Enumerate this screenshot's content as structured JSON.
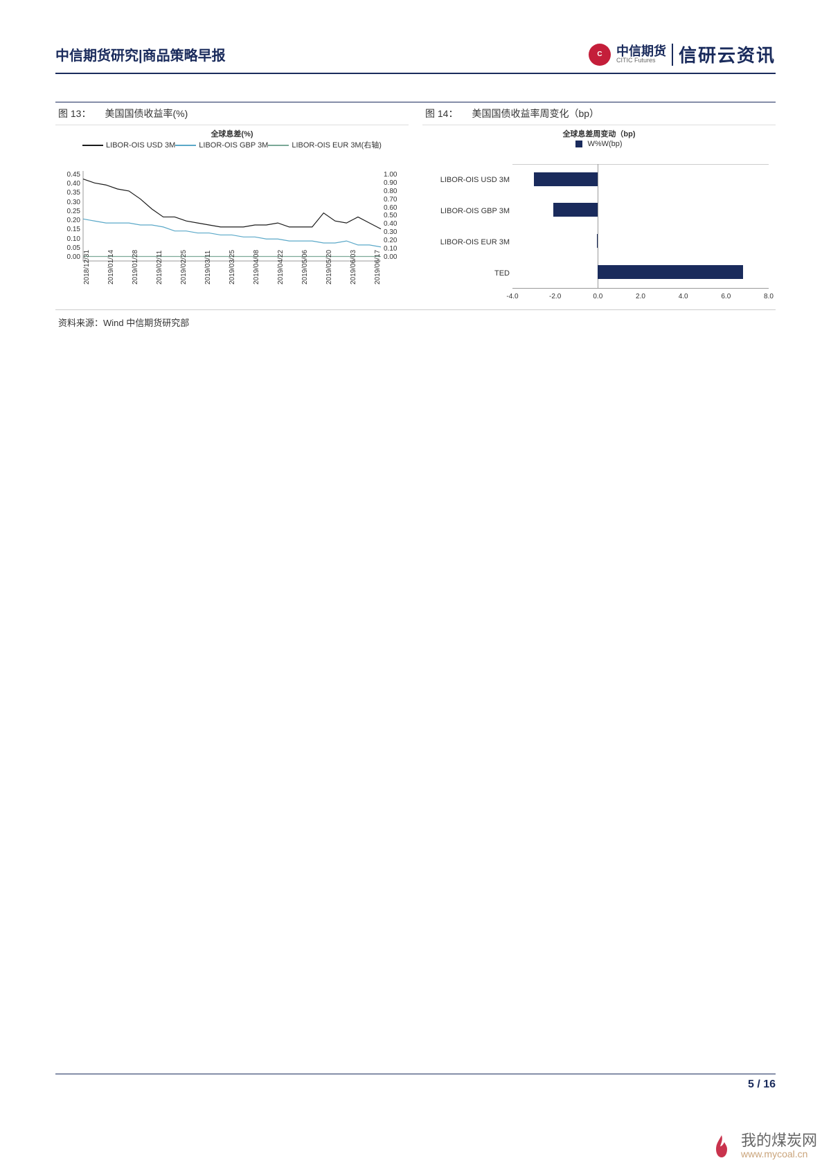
{
  "header": {
    "title": "中信期货研究|商品策略早报",
    "company_cn": "中信期货",
    "company_en": "CITIC Futures",
    "brand": "信研云资讯"
  },
  "chart13": {
    "label": "图 13：",
    "title": "美国国债收益率(%)",
    "type": "line",
    "legend_title": "全球息差(%)",
    "legend_items": [
      {
        "label": "LIBOR-OIS USD 3M",
        "color": "#1a1a1a"
      },
      {
        "label": "LIBOR-OIS GBP 3M",
        "color": "#5aa8c8"
      },
      {
        "label": "LIBOR-OIS EUR 3M(右轴)",
        "color": "#7aa897"
      }
    ],
    "y_left": {
      "min": 0.0,
      "max": 0.45,
      "ticks": [
        "0.45",
        "0.40",
        "0.35",
        "0.30",
        "0.25",
        "0.20",
        "0.15",
        "0.10",
        "0.05",
        "0.00"
      ]
    },
    "y_right": {
      "min": 0.0,
      "max": 1.0,
      "ticks": [
        "1.00",
        "0.90",
        "0.80",
        "0.70",
        "0.60",
        "0.50",
        "0.40",
        "0.30",
        "0.20",
        "0.10",
        "0.00"
      ]
    },
    "x_ticks": [
      "2018/12/31",
      "2019/01/14",
      "2019/01/28",
      "2019/02/11",
      "2019/02/25",
      "2019/03/11",
      "2019/03/25",
      "2019/04/08",
      "2019/04/22",
      "2019/05/06",
      "2019/05/20",
      "2019/06/03",
      "2019/06/17"
    ],
    "series": {
      "usd": [
        0.41,
        0.39,
        0.38,
        0.36,
        0.35,
        0.31,
        0.26,
        0.22,
        0.22,
        0.2,
        0.19,
        0.18,
        0.17,
        0.17,
        0.17,
        0.18,
        0.18,
        0.19,
        0.17,
        0.17,
        0.17,
        0.24,
        0.2,
        0.19,
        0.22,
        0.19,
        0.16
      ],
      "gbp": [
        0.21,
        0.2,
        0.19,
        0.19,
        0.19,
        0.18,
        0.18,
        0.17,
        0.15,
        0.15,
        0.14,
        0.14,
        0.13,
        0.13,
        0.12,
        0.12,
        0.11,
        0.11,
        0.1,
        0.1,
        0.1,
        0.09,
        0.09,
        0.1,
        0.08,
        0.08,
        0.07
      ],
      "eur_right": [
        0.05,
        0.05,
        0.05,
        0.05,
        0.05,
        0.05,
        0.05,
        0.05,
        0.05,
        0.05,
        0.05,
        0.05,
        0.05,
        0.05,
        0.05,
        0.05,
        0.05,
        0.05,
        0.05,
        0.05,
        0.05,
        0.05,
        0.05,
        0.05,
        0.05,
        0.05,
        0.05
      ]
    },
    "line_width": 1.2,
    "background_color": "#ffffff"
  },
  "chart14": {
    "label": "图 14：",
    "title": "美国国债收益率周变化（bp）",
    "type": "bar-horizontal",
    "legend_title": "全球息差周变动（bp)",
    "legend_series": "W%W(bp)",
    "categories": [
      "LIBOR-OIS USD 3M",
      "LIBOR-OIS GBP 3M",
      "LIBOR-OIS EUR 3M",
      "TED"
    ],
    "values": [
      -3.0,
      -2.1,
      -0.05,
      6.8
    ],
    "bar_color": "#1a2b5c",
    "x_ticks": [
      "-4.0",
      "-2.0",
      "0.0",
      "2.0",
      "4.0",
      "6.0",
      "8.0"
    ],
    "xlim": [
      -4.0,
      8.0
    ],
    "background_color": "#ffffff"
  },
  "source": "资料来源：Wind  中信期货研究部",
  "footer": {
    "page": "5 / 16"
  },
  "watermark": {
    "cn": "我的煤炭网",
    "url": "www.mycoal.cn"
  }
}
